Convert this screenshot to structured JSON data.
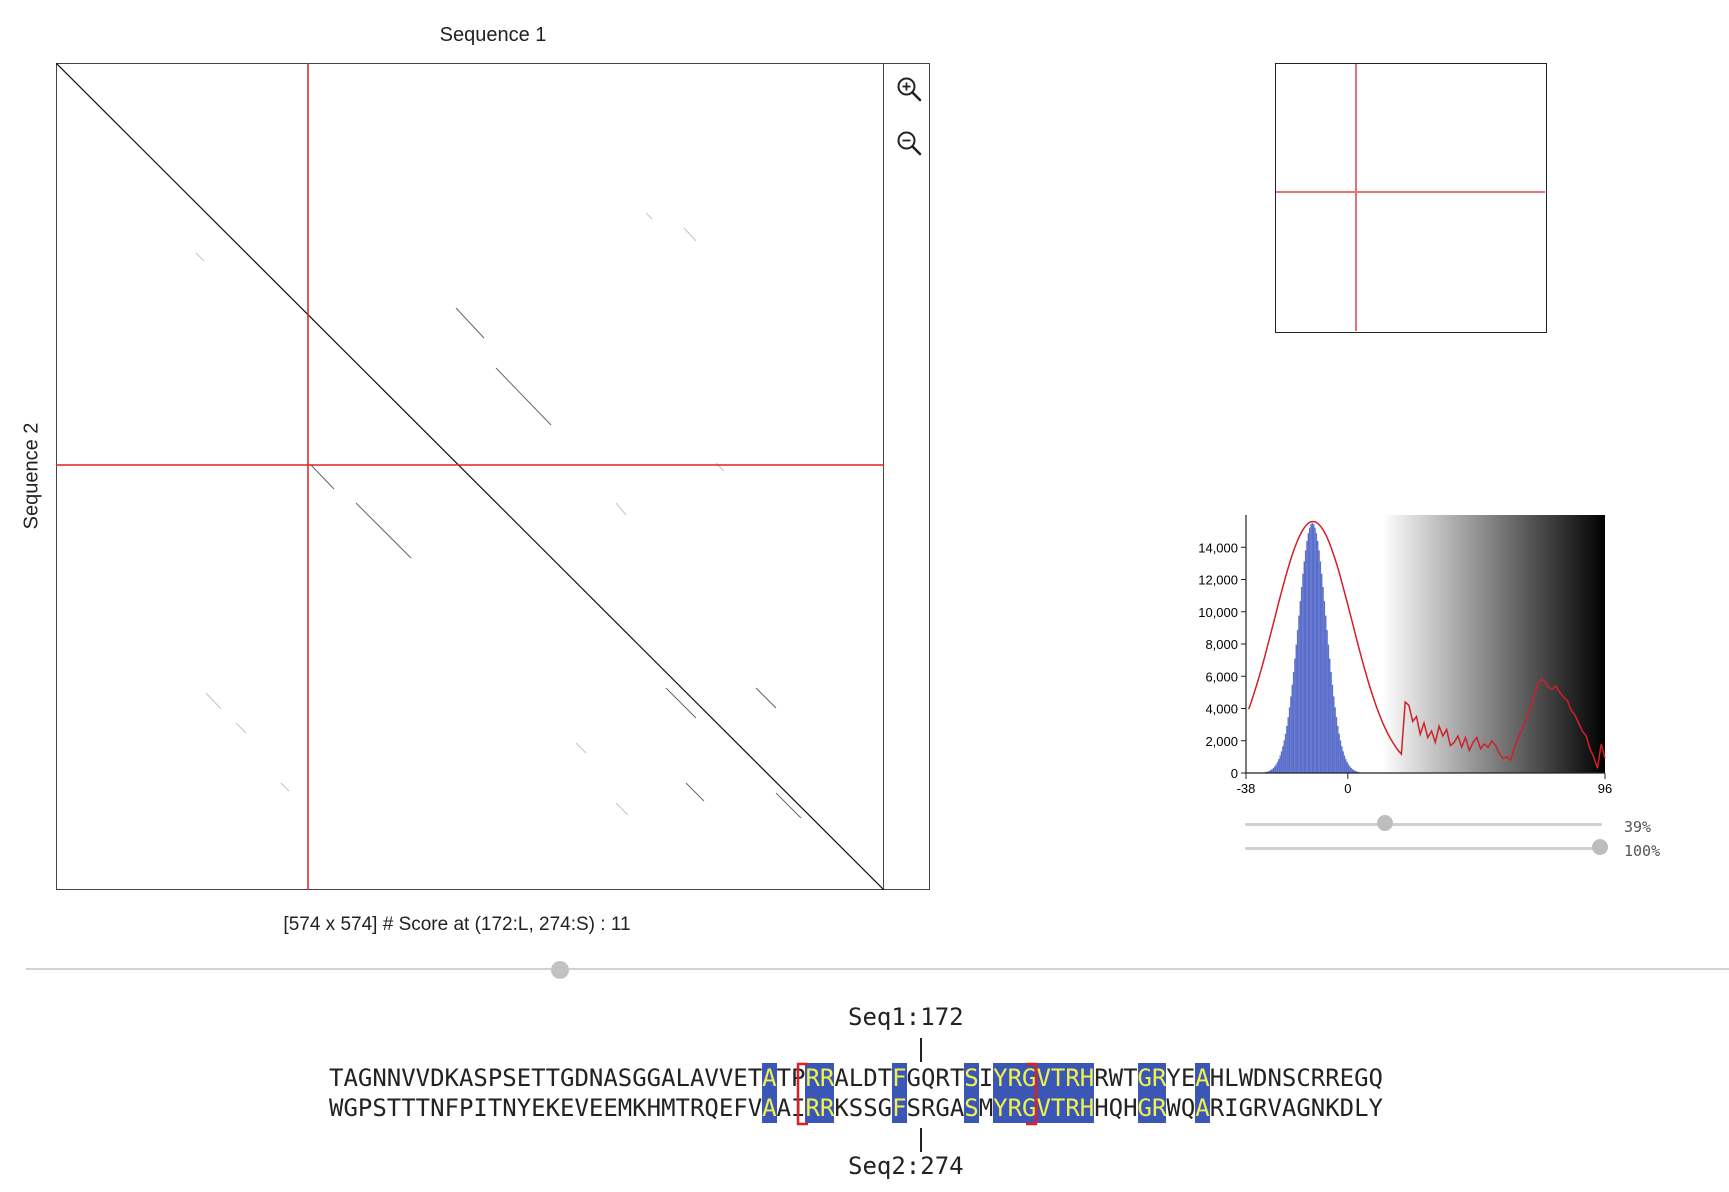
{
  "plot": {
    "title": "Sequence 1",
    "ylabel": "Sequence 2",
    "status": "[574 x 574] # Score at (172:L, 274:S) : 11",
    "length1": 574,
    "length2": 574,
    "cursor": {
      "seq1_position": 172,
      "seq2_position": 274
    }
  },
  "zoom": {
    "in_icon": "zoom-in-icon",
    "out_icon": "zoom-out-icon"
  },
  "histogram": {
    "tick_labels_y": [
      "0",
      "2,000",
      "4,000",
      "6,000",
      "8,000",
      "10,000",
      "12,000",
      "14,000"
    ],
    "tick_labels_x": [
      "-38",
      "0",
      "96"
    ],
    "bar_color": "#5a6fcb",
    "curve_color": "#d0202a"
  },
  "sliders": [
    {
      "value_label": "39%",
      "value": 0.39
    },
    {
      "value_label": "100%",
      "value": 1.0
    }
  ],
  "alignment": {
    "seq1_label": "Seq1:172",
    "seq2_label": "Seq2:274",
    "seq1": "TAGNNVVDKASPSETTGDNASGGALAVVETATPRRALDTFGQRTSIYRGVTRHRWTGRYEAHLWDNSCRREGQ",
    "seq2": "WGPSTTTNFPITNYEKEVEEMKHMTRQEFVAAIRRKSSGFSRGASMYRGVTRHHQHGRWQARIGRVAGNKDLY",
    "highlight_color": "#3a57b7",
    "text_highlight_color": "#f3f24a",
    "bracket_color": "#e02020"
  }
}
